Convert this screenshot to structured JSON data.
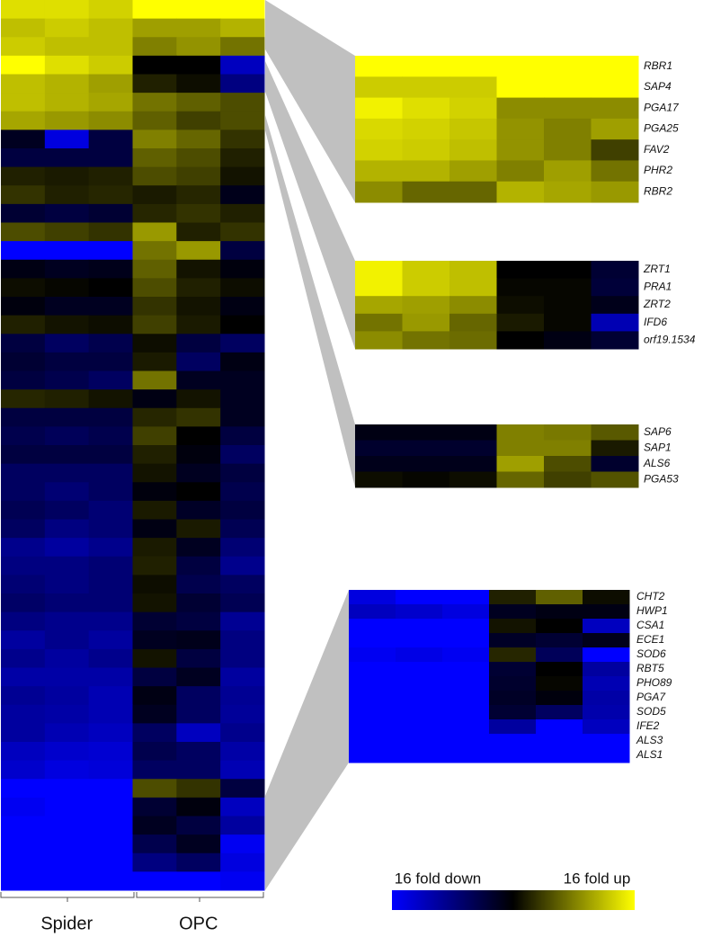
{
  "chart_data": [
    {
      "type": "heatmap",
      "column_groups": [
        "Spider",
        "OPC"
      ],
      "values": [
        [
          3.5,
          3.5,
          3.3,
          4,
          4,
          4
        ],
        [
          3,
          3.2,
          3,
          2.5,
          2.5,
          2.8
        ],
        [
          3.2,
          3,
          3,
          2,
          2.3,
          1.8
        ],
        [
          4,
          3.5,
          3.2,
          0,
          0,
          -3
        ],
        [
          3,
          2.8,
          2.5,
          0.5,
          0.2,
          -2
        ],
        [
          3,
          2.8,
          2.6,
          1.8,
          1.5,
          1.2
        ],
        [
          2.6,
          2.4,
          2.2,
          1.5,
          1,
          1.2
        ],
        [
          -0.5,
          -3.5,
          -1,
          2,
          1.6,
          0.8
        ],
        [
          -1,
          -1,
          -1,
          1.5,
          1.2,
          0.5
        ],
        [
          0.5,
          0.4,
          0.5,
          1.2,
          1,
          0.3
        ],
        [
          0.8,
          0.5,
          0.6,
          0.4,
          0.6,
          -0.4
        ],
        [
          -0.8,
          -1,
          -0.8,
          0.6,
          0.8,
          0.5
        ],
        [
          1.2,
          1,
          0.8,
          2.4,
          0.5,
          0.8
        ],
        [
          -4,
          -4,
          -4,
          1.8,
          2.4,
          -1
        ],
        [
          -0.3,
          -0.5,
          -0.4,
          1.5,
          0.3,
          -0.2
        ],
        [
          0.2,
          0.1,
          0,
          1.2,
          0.5,
          0.2
        ],
        [
          -0.2,
          -0.5,
          -0.5,
          0.8,
          0.3,
          -0.3
        ],
        [
          0.5,
          0.3,
          0.2,
          1,
          0.4,
          0
        ],
        [
          -1,
          -1.5,
          -1.2,
          0.2,
          -1,
          -1.5
        ],
        [
          -0.8,
          -1,
          -1,
          0.4,
          -1.5,
          -0.3
        ],
        [
          -1,
          -1.2,
          -1.5,
          1.8,
          -0.5,
          -0.5
        ],
        [
          0.6,
          0.5,
          0.3,
          -0.3,
          0.3,
          -0.5
        ],
        [
          -1,
          -1,
          -1,
          0.6,
          0.8,
          -0.5
        ],
        [
          -1.2,
          -1.4,
          -1.2,
          1,
          0,
          -1
        ],
        [
          -1,
          -1,
          -1,
          0.5,
          -0.2,
          -1.5
        ],
        [
          -1.5,
          -1.5,
          -1.5,
          0.3,
          -0.5,
          -1
        ],
        [
          -1.5,
          -1.8,
          -1.5,
          -0.2,
          0,
          -1.2
        ],
        [
          -1.3,
          -1.5,
          -1.8,
          0.4,
          -0.6,
          -1
        ],
        [
          -1.5,
          -2,
          -1.8,
          -0.3,
          0.4,
          -1.3
        ],
        [
          -2.2,
          -2.5,
          -2.2,
          0.4,
          -0.5,
          -1.8
        ],
        [
          -2,
          -2,
          -1.8,
          0.5,
          -1,
          -2.2
        ],
        [
          -1.8,
          -2,
          -1.8,
          0.2,
          -1.2,
          -1.5
        ],
        [
          -1.6,
          -1.8,
          -1.8,
          0.3,
          -0.8,
          -1.3
        ],
        [
          -2,
          -2.2,
          -2.2,
          -0.8,
          -1,
          -2.3
        ],
        [
          -2.5,
          -2.2,
          -2.5,
          -0.5,
          -0.4,
          -2
        ],
        [
          -2.2,
          -2.5,
          -2.2,
          0.3,
          -1,
          -2
        ],
        [
          -2.6,
          -2.6,
          -2.6,
          -1,
          -0.5,
          -2.5
        ],
        [
          -2.3,
          -2.5,
          -2.8,
          -0.3,
          -1.5,
          -2.3
        ],
        [
          -2.5,
          -2.6,
          -2.8,
          -0.5,
          -1.5,
          -2.4
        ],
        [
          -2.5,
          -2.8,
          -3,
          -1.5,
          -3,
          -2.2
        ],
        [
          -3,
          -3.2,
          -3.3,
          -1.2,
          -1.5,
          -2.6
        ],
        [
          -3.2,
          -3.5,
          -3.4,
          -1.5,
          -1.5,
          -2.8
        ],
        [
          -4,
          -4,
          -4,
          1.2,
          0.8,
          -1
        ],
        [
          -3.8,
          -4,
          -4,
          -0.8,
          -0.2,
          -3
        ],
        [
          -4,
          -4,
          -4,
          -0.5,
          -1,
          -2.5
        ],
        [
          -4,
          -4,
          -4,
          -1.2,
          -0.5,
          -3.8
        ],
        [
          -4,
          -4,
          -4,
          -2,
          -1.5,
          -3.5
        ],
        [
          -4,
          -4,
          -4,
          -4,
          -4,
          -3.8
        ]
      ]
    },
    {
      "type": "heatmap",
      "rows": [
        "RBR1",
        "SAP4",
        "PGA17",
        "PGA25",
        "FAV2",
        "PHR2",
        "RBR2"
      ],
      "values": [
        [
          4,
          4,
          4,
          4,
          4,
          4
        ],
        [
          3.2,
          3.2,
          3.2,
          4,
          4,
          4
        ],
        [
          3.8,
          3.5,
          3.3,
          2.2,
          2.2,
          2.2
        ],
        [
          3.4,
          3.3,
          3.1,
          2.3,
          2,
          2.5
        ],
        [
          3.3,
          3.2,
          3,
          2.3,
          2,
          1
        ],
        [
          2.8,
          2.8,
          2.5,
          2,
          2.5,
          1.8
        ],
        [
          2.2,
          1.6,
          1.6,
          2.8,
          2.6,
          2.4
        ]
      ]
    },
    {
      "type": "heatmap",
      "rows": [
        "ZRT1",
        "PRA1",
        "ZRT2",
        "IFD6",
        "orf19.1534"
      ],
      "values": [
        [
          3.8,
          3.2,
          3,
          0,
          0,
          -0.8
        ],
        [
          3.8,
          3.2,
          3,
          0.1,
          0.1,
          -0.9
        ],
        [
          2.6,
          2.5,
          2.2,
          0.2,
          0.1,
          -0.4
        ],
        [
          1.8,
          2.4,
          1.6,
          0.4,
          0.1,
          -2.8
        ],
        [
          2.2,
          1.8,
          1.7,
          0,
          -0.3,
          -0.8
        ]
      ]
    },
    {
      "type": "heatmap",
      "rows": [
        "SAP6",
        "SAP1",
        "ALS6",
        "PGA53"
      ],
      "values": [
        [
          -0.3,
          -0.3,
          -0.3,
          2,
          1.9,
          1.4
        ],
        [
          -0.7,
          -0.7,
          -0.7,
          2,
          2,
          0.4
        ],
        [
          -0.4,
          -0.4,
          -0.4,
          2.5,
          1.2,
          -0.7
        ],
        [
          0.2,
          0.1,
          0.2,
          1.6,
          1,
          1.3
        ]
      ]
    },
    {
      "type": "heatmap",
      "rows": [
        "CHT2",
        "HWP1",
        "CSA1",
        "ECE1",
        "SOD6",
        "RBT5",
        "PHO89",
        "PGA7",
        "SOD5",
        "IFE2",
        "ALS3",
        "ALS1"
      ],
      "values": [
        [
          -3.5,
          -4,
          -4,
          0.5,
          1.5,
          0.2
        ],
        [
          -3,
          -3.2,
          -3.5,
          -0.5,
          -0.3,
          -0.3
        ],
        [
          -4,
          -4,
          -4,
          0.3,
          0,
          -3
        ],
        [
          -4,
          -4,
          -4,
          -0.6,
          -0.8,
          -0.4
        ],
        [
          -3.8,
          -3.6,
          -3.8,
          0.6,
          -1.4,
          -4
        ],
        [
          -4,
          -4,
          -4,
          -0.8,
          0,
          -2.5
        ],
        [
          -4,
          -4,
          -4,
          -0.7,
          0.1,
          -2.8
        ],
        [
          -4,
          -4,
          -4,
          -0.6,
          -0.2,
          -2.6
        ],
        [
          -4,
          -4,
          -4,
          -0.8,
          -1.5,
          -2.7
        ],
        [
          -4,
          -4,
          -4,
          -2.5,
          -4,
          -3
        ],
        [
          -4,
          -4,
          -4,
          -4,
          -4,
          -4
        ],
        [
          -4,
          -4,
          -4,
          -4,
          -4,
          -4
        ]
      ]
    }
  ],
  "colorbar": {
    "labels": [
      "16 fold down",
      "16 fold up"
    ],
    "zlim": [
      -4,
      4
    ],
    "colors": [
      "#0000ff",
      "#000000",
      "#ffff00"
    ]
  }
}
